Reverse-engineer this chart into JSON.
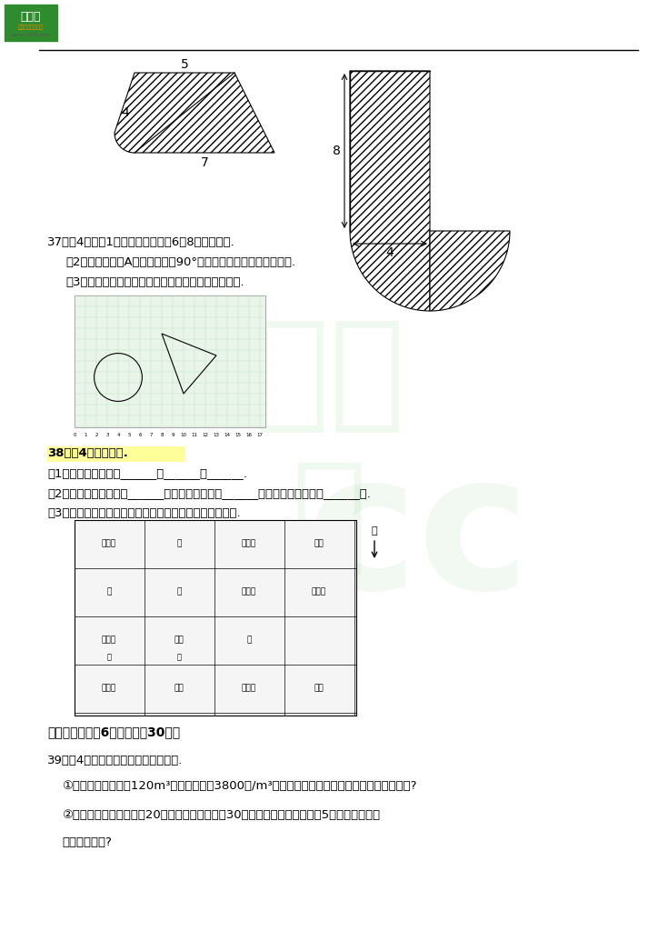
{
  "bg_color": "#ffffff",
  "section_title_37": "37．（4分）（1）把圆移到圆心（6，8）的位置上.",
  "section_37_2": "（2）把三角形绕A点顺时针旋转90°，再画出新三角形底边上的高.",
  "section_37_3": "（3）画出右上方图形的另一半，使其成为轴对称图形.",
  "section_38_title": "38．（4分）辨方向.",
  "section_38_1": "（1）解放路的西面有______、______和______.",
  "section_38_2": "（2）小丽家在芙蓉路的______面，商场在公园的______面．学校在小明家的______面.",
  "section_38_3": "（3）请在图上画出小明去图书馆和小丽去学校所走的路线.",
  "section_5_title": "五．解答题（共6小题，满分30分）",
  "section_39_title": "39．（4分）只列算式或方程，不计算.",
  "section_39_1": "①小强家准备买一套120m³的住房，单价3800元/m³，如果按九五折优惠，买这套住房要多少元?",
  "section_39_2": "②一件工作，甲独做需要20天完成，乙独做需要30天完成．甲、乙两人合做5天，完成这件工",
  "section_39_3": "作的几分之几?"
}
